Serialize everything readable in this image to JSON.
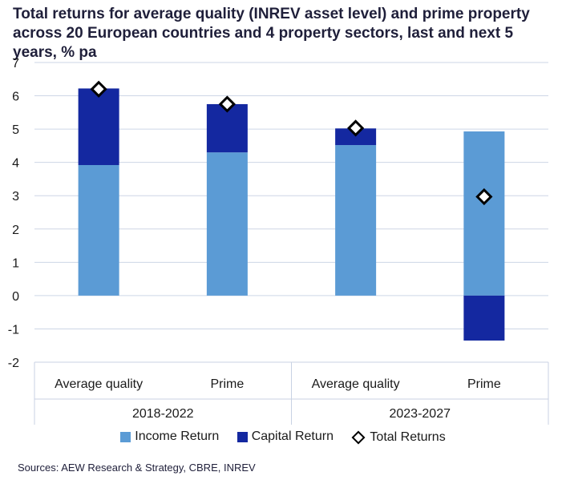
{
  "chart_data": {
    "type": "bar",
    "title": "Total returns for average quality (INREV asset level) and prime property across 20 European countries and 4 property sectors, last and next 5 years, % pa",
    "categories": [
      "Average quality",
      "Prime",
      "Average quality",
      "Prime"
    ],
    "groups": [
      {
        "label": "2018-2022",
        "span": [
          0,
          1
        ]
      },
      {
        "label": "2023-2027",
        "span": [
          2,
          3
        ]
      }
    ],
    "series": [
      {
        "name": "Income Return",
        "kind": "bar",
        "color": "#5b9bd5",
        "values": [
          3.92,
          4.3,
          4.52,
          4.93
        ]
      },
      {
        "name": "Capital Return",
        "kind": "bar",
        "color": "#1428a0",
        "values": [
          2.3,
          1.45,
          0.5,
          -1.35
        ]
      },
      {
        "name": "Total Returns",
        "kind": "marker",
        "values": [
          6.2,
          5.75,
          5.03,
          2.97
        ]
      }
    ],
    "yticks": [
      "7",
      "6",
      "5",
      "4",
      "3",
      "2",
      "1",
      "0",
      "-1",
      "-2"
    ],
    "ylim": [
      -2,
      7
    ],
    "grid": true,
    "legend_position": "bottom",
    "source": "Sources: AEW Research & Strategy, CBRE, INREV"
  }
}
